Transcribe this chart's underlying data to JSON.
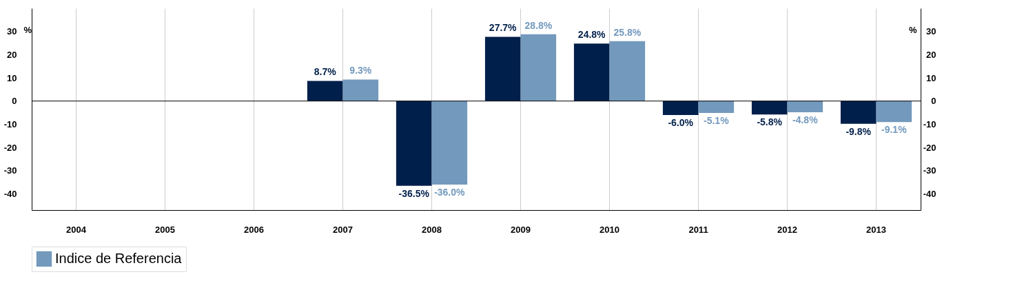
{
  "chart_data": {
    "type": "bar",
    "categories": [
      "2004",
      "2005",
      "2006",
      "2007",
      "2008",
      "2009",
      "2010",
      "2011",
      "2012",
      "2013"
    ],
    "series": [
      {
        "color": "#001f4b",
        "values": [
          null,
          null,
          null,
          8.7,
          -36.5,
          27.7,
          24.8,
          -6.0,
          -5.8,
          -9.8
        ],
        "value_labels": [
          null,
          null,
          null,
          "8.7%",
          "-36.5%",
          "27.7%",
          "24.8%",
          "-6.0%",
          "-5.8%",
          "-9.8%"
        ]
      },
      {
        "name": "Indice de Referencia",
        "color": "#7399bd",
        "values": [
          null,
          null,
          null,
          9.3,
          -36.0,
          28.8,
          25.8,
          -5.1,
          -4.8,
          -9.1
        ],
        "value_labels": [
          null,
          null,
          null,
          "9.3%",
          "-36.0%",
          "28.8%",
          "25.8%",
          "-5.1%",
          "-4.8%",
          "-9.1%"
        ]
      }
    ],
    "ylabel": "%",
    "y2label": "%",
    "ylim": [
      -47,
      40
    ],
    "yticks": [
      -40,
      -30,
      -20,
      -10,
      0,
      10,
      20,
      30
    ],
    "y2lim": [
      -47,
      40
    ],
    "y2ticks": [
      -40,
      -30,
      -20,
      -10,
      0,
      10,
      20,
      30
    ],
    "ref_lines": [
      {
        "axis": "y",
        "value": 0,
        "color": "#000000"
      }
    ],
    "grid": "x",
    "legend": "bottom"
  }
}
